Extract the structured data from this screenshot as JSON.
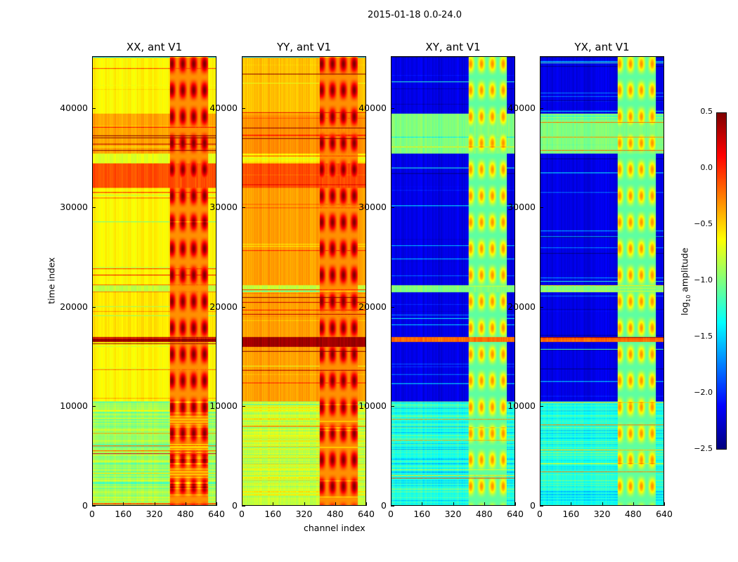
{
  "chart_data": {
    "type": "heatmap",
    "title": "2015-01-18 0.0-24.0",
    "xlabel": "channel index",
    "ylabel": "time index",
    "xlim": [
      0,
      640
    ],
    "ylim": [
      0,
      45200
    ],
    "xticks": [
      "0",
      "160",
      "320",
      "480",
      "640"
    ],
    "yticks": [
      "0",
      "10000",
      "20000",
      "30000",
      "40000"
    ],
    "panels": [
      {
        "title": "XX, ant V1",
        "background": [
          [
            0,
            10500,
            -0.9
          ],
          [
            10500,
            16500,
            -0.6
          ],
          [
            16500,
            17000,
            0.4
          ],
          [
            17000,
            21500,
            -0.55
          ],
          [
            21500,
            22200,
            -0.8
          ],
          [
            22200,
            32000,
            -0.6
          ],
          [
            32000,
            34500,
            -0.1
          ],
          [
            34500,
            35500,
            -0.7
          ],
          [
            35500,
            39500,
            -0.35
          ],
          [
            39500,
            45200,
            -0.6
          ]
        ],
        "rfi_channels": [
          400,
          600
        ],
        "rfi_level": 0.1
      },
      {
        "title": "YY, ant V1",
        "background": [
          [
            0,
            10500,
            -0.8
          ],
          [
            10500,
            16000,
            -0.35
          ],
          [
            16000,
            17000,
            0.4
          ],
          [
            17000,
            21500,
            -0.35
          ],
          [
            21500,
            22200,
            -0.8
          ],
          [
            22200,
            32000,
            -0.35
          ],
          [
            32000,
            34500,
            -0.1
          ],
          [
            34500,
            35500,
            -0.6
          ],
          [
            35500,
            39500,
            -0.3
          ],
          [
            39500,
            45200,
            -0.45
          ]
        ],
        "rfi_channels": [
          400,
          600
        ],
        "rfi_level": 0.1
      },
      {
        "title": "XY, ant V1",
        "background": [
          [
            0,
            10500,
            -1.3
          ],
          [
            10500,
            16500,
            -2.2
          ],
          [
            16500,
            17000,
            -0.2
          ],
          [
            17000,
            21500,
            -2.2
          ],
          [
            21500,
            22200,
            -1.0
          ],
          [
            22200,
            35500,
            -2.2
          ],
          [
            35500,
            39500,
            -1.0
          ],
          [
            39500,
            45200,
            -2.2
          ]
        ],
        "rfi_channels": [
          400,
          600
        ],
        "rfi_level": -0.4
      },
      {
        "title": "YX, ant V1",
        "background": [
          [
            0,
            10500,
            -1.3
          ],
          [
            10500,
            16500,
            -2.2
          ],
          [
            16500,
            17000,
            -0.2
          ],
          [
            17000,
            21500,
            -2.2
          ],
          [
            21500,
            22200,
            -1.0
          ],
          [
            22200,
            35500,
            -2.2
          ],
          [
            35500,
            39500,
            -1.0
          ],
          [
            39500,
            45200,
            -2.2
          ]
        ],
        "rfi_channels": [
          400,
          600
        ],
        "rfi_level": -0.4
      }
    ],
    "colorbar": {
      "label": "log10 amplitude",
      "label_base": "log",
      "label_sub": "10",
      "label_rest": " amplitude",
      "range": [
        -2.5,
        0.5
      ],
      "ticks": [
        "0.5",
        "0.0",
        "−0.5",
        "−1.0",
        "−1.5",
        "−2.0",
        "−2.5"
      ],
      "colormap": "jet"
    }
  }
}
